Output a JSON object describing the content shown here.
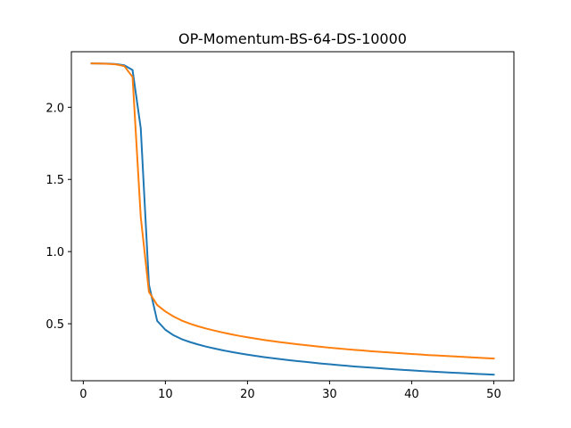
{
  "chart_data": {
    "type": "line",
    "title": "OP-Momentum-BS-64-DS-10000",
    "xlabel": "",
    "ylabel": "",
    "xlim": [
      -1.45,
      52.45
    ],
    "ylim": [
      0.105,
      2.385
    ],
    "xticks": [
      0,
      10,
      20,
      30,
      40,
      50
    ],
    "yticks": [
      0.5,
      1.0,
      1.5,
      2.0
    ],
    "ytick_labels": [
      "0.5",
      "1.0",
      "1.5",
      "2.0"
    ],
    "grid": false,
    "legend": "none",
    "x": [
      1,
      2,
      3,
      4,
      5,
      6,
      7,
      8,
      9,
      10,
      11,
      12,
      13,
      14,
      15,
      16,
      17,
      18,
      19,
      20,
      21,
      22,
      23,
      24,
      25,
      26,
      27,
      28,
      29,
      30,
      31,
      32,
      33,
      34,
      35,
      36,
      37,
      38,
      39,
      40,
      41,
      42,
      43,
      44,
      45,
      46,
      47,
      48,
      49,
      50
    ],
    "series": [
      {
        "color": "#1f77b4",
        "values": [
          2.304,
          2.303,
          2.302,
          2.299,
          2.291,
          2.258,
          1.855,
          0.77,
          0.52,
          0.458,
          0.42,
          0.393,
          0.373,
          0.356,
          0.341,
          0.328,
          0.316,
          0.305,
          0.295,
          0.286,
          0.277,
          0.269,
          0.262,
          0.255,
          0.248,
          0.242,
          0.236,
          0.23,
          0.224,
          0.219,
          0.214,
          0.209,
          0.204,
          0.2,
          0.196,
          0.192,
          0.188,
          0.184,
          0.18,
          0.177,
          0.173,
          0.17,
          0.167,
          0.164,
          0.161,
          0.158,
          0.155,
          0.152,
          0.15,
          0.147
        ]
      },
      {
        "color": "#ff7f0e",
        "values": [
          2.304,
          2.303,
          2.301,
          2.297,
          2.285,
          2.21,
          1.24,
          0.72,
          0.63,
          0.585,
          0.55,
          0.522,
          0.5,
          0.482,
          0.466,
          0.452,
          0.439,
          0.427,
          0.416,
          0.406,
          0.397,
          0.388,
          0.38,
          0.372,
          0.365,
          0.358,
          0.352,
          0.346,
          0.34,
          0.334,
          0.329,
          0.324,
          0.319,
          0.315,
          0.31,
          0.306,
          0.302,
          0.298,
          0.294,
          0.29,
          0.287,
          0.283,
          0.28,
          0.277,
          0.274,
          0.271,
          0.268,
          0.265,
          0.262,
          0.259
        ]
      }
    ]
  }
}
